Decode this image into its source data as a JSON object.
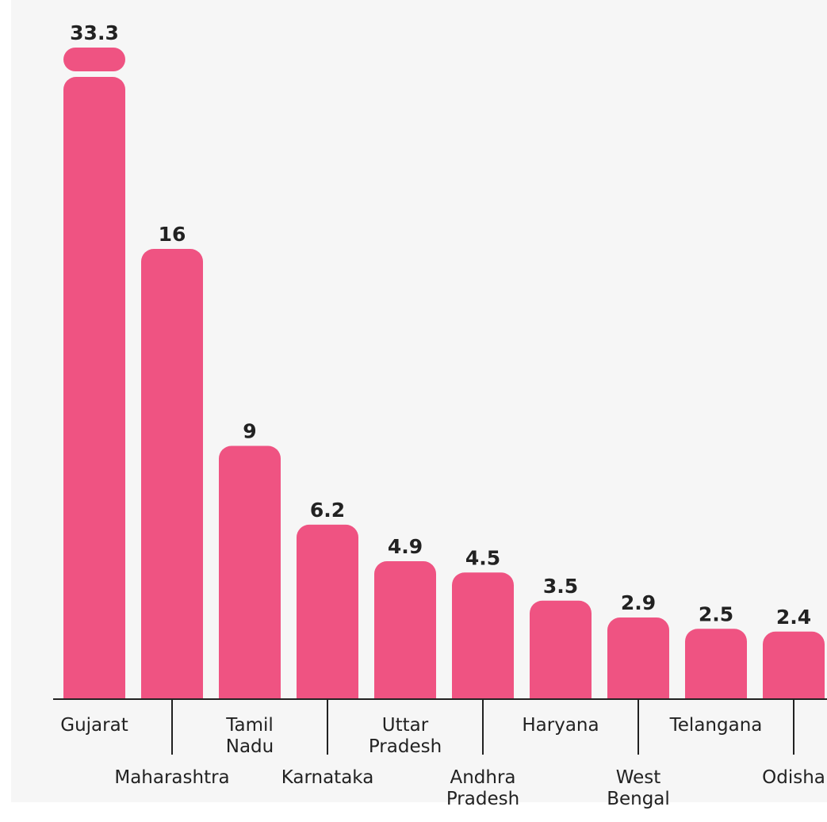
{
  "chart_data": {
    "type": "bar",
    "title": "",
    "xlabel": "",
    "ylabel": "",
    "categories": [
      "Gujarat",
      "Maharashtra",
      "Tamil Nadu",
      "Karnataka",
      "Uttar Pradesh",
      "Andhra Pradesh",
      "Haryana",
      "West Bengal",
      "Telangana",
      "Odisha"
    ],
    "category_lines": [
      [
        "Gujarat"
      ],
      [
        "Maharashtra"
      ],
      [
        "Tamil",
        "Nadu"
      ],
      [
        "Karnataka"
      ],
      [
        "Uttar",
        "Pradesh"
      ],
      [
        "Andhra",
        "Pradesh"
      ],
      [
        "Haryana"
      ],
      [
        "West",
        "Bengal"
      ],
      [
        "Telangana"
      ],
      [
        "Odisha"
      ]
    ],
    "values": [
      33.3,
      16,
      9,
      6.2,
      4.9,
      4.5,
      3.5,
      2.9,
      2.5,
      2.4
    ],
    "value_labels": [
      "33.3",
      "16",
      "9",
      "6.2",
      "4.9",
      "4.5",
      "3.5",
      "2.9",
      "2.5",
      "2.4"
    ],
    "axis_break": true,
    "grid": false,
    "legend": "none",
    "colors": {
      "bar": "#ef5382",
      "axis": "#222222",
      "background": "#f6f6f6"
    }
  }
}
